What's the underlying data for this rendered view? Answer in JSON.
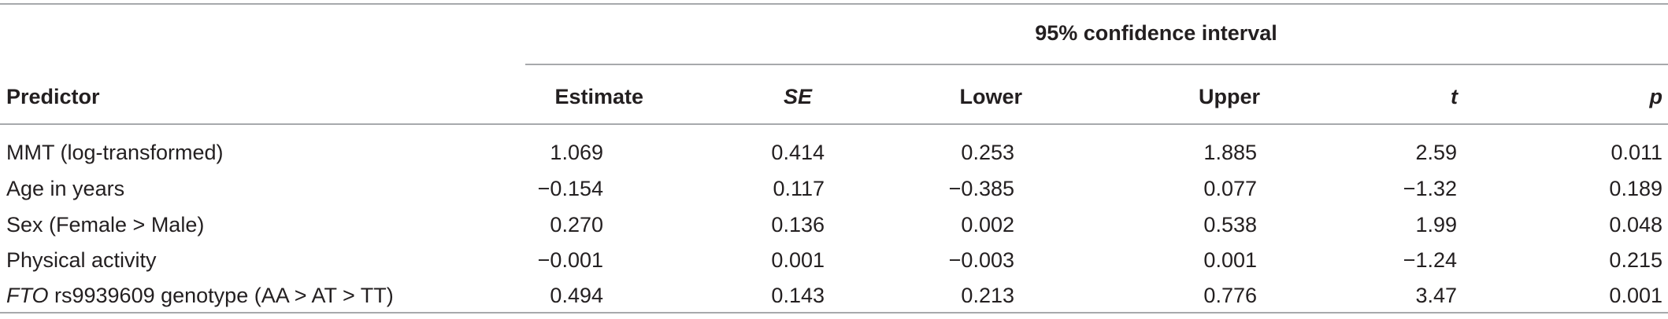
{
  "table": {
    "group_header": "95% confidence interval",
    "columns": {
      "predictor": "Predictor",
      "estimate": "Estimate",
      "se": "SE",
      "lower": "Lower",
      "upper": "Upper",
      "t": "t",
      "p": "p"
    },
    "rows": [
      {
        "predictor": "MMT (log-transformed)",
        "predictor_italic": "",
        "estimate": "1.069",
        "se": "0.414",
        "lower": "0.253",
        "upper": "1.885",
        "t": "2.59",
        "p": "0.011"
      },
      {
        "predictor": "Age in years",
        "predictor_italic": "",
        "estimate": "−0.154",
        "se": "0.117",
        "lower": "−0.385",
        "upper": "0.077",
        "t": "−1.32",
        "p": "0.189"
      },
      {
        "predictor": "Sex (Female > Male)",
        "predictor_italic": "",
        "estimate": "0.270",
        "se": "0.136",
        "lower": "0.002",
        "upper": "0.538",
        "t": "1.99",
        "p": "0.048"
      },
      {
        "predictor": "Physical activity",
        "predictor_italic": "",
        "estimate": "−0.001",
        "se": "0.001",
        "lower": "−0.003",
        "upper": "0.001",
        "t": "−1.24",
        "p": "0.215"
      },
      {
        "predictor": " rs9939609 genotype (AA > AT > TT)",
        "predictor_italic": "FTO",
        "estimate": "0.494",
        "se": "0.143",
        "lower": "0.213",
        "upper": "0.776",
        "t": "3.47",
        "p": "0.001"
      }
    ]
  }
}
